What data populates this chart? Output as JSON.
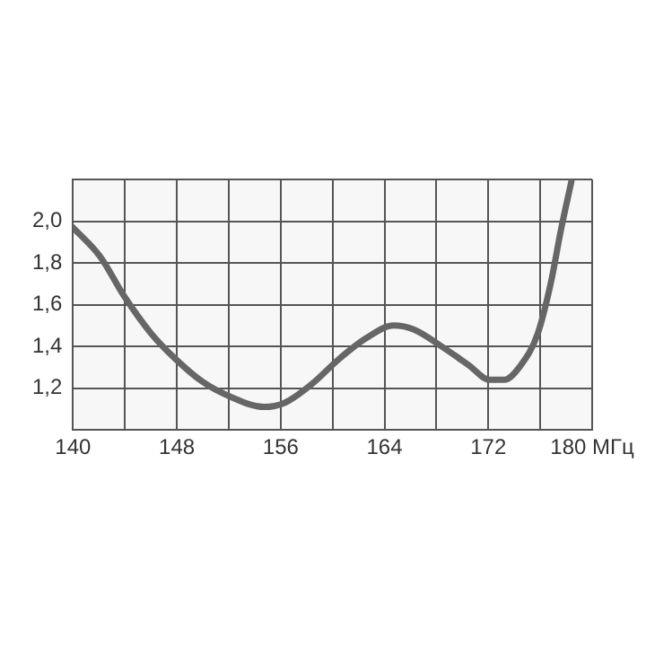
{
  "chart_data": {
    "type": "line",
    "x": [
      140,
      142.1,
      143.95,
      146.05,
      147.9,
      150,
      152.1,
      154.7,
      156.3,
      158.4,
      160.5,
      162.6,
      164.7,
      166.3,
      168.4,
      170.5,
      172.1,
      173.2,
      174.5,
      175.8,
      176.8,
      177.6,
      178.4
    ],
    "series": [
      {
        "color": "#666666",
        "values": [
          1.97,
          1.83,
          1.64,
          1.46,
          1.34,
          1.23,
          1.16,
          1.11,
          1.13,
          1.22,
          1.34,
          1.44,
          1.5,
          1.48,
          1.4,
          1.31,
          1.24,
          1.24,
          1.31,
          1.46,
          1.7,
          1.96,
          2.19
        ]
      }
    ],
    "xlim": [
      140,
      180
    ],
    "xticks": [
      140,
      {
        "value": 144,
        "label": null
      },
      148,
      {
        "value": 152,
        "label": null
      },
      156,
      {
        "value": 160,
        "label": null
      },
      164,
      {
        "value": 168,
        "label": null
      },
      172,
      {
        "value": 176,
        "label": null
      },
      {
        "value": 180,
        "label": "180 МГц"
      }
    ],
    "ylim": [
      1.0,
      2.2
    ],
    "yticks": [
      {
        "value": 1.0,
        "label": null
      },
      {
        "value": 1.2,
        "label": "1,2"
      },
      {
        "value": 1.4,
        "label": "1,4"
      },
      {
        "value": 1.6,
        "label": "1,6"
      },
      {
        "value": 1.8,
        "label": "1,8"
      },
      {
        "value": 2.0,
        "label": "2,0"
      },
      {
        "value": 2.2,
        "label": null
      }
    ],
    "grid": true,
    "legend": false,
    "marker": "none",
    "line_style": "solid"
  }
}
